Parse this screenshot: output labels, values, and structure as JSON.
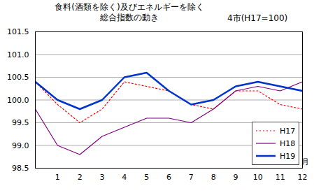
{
  "chart_data": {
    "type": "line",
    "title": "食料(酒類を除く)及びエネルギーを除く\n総合指数の動き",
    "subtitle": "4市(H17=100)",
    "x_label": "月",
    "x": [
      0,
      1,
      2,
      3,
      4,
      5,
      6,
      7,
      8,
      9,
      10,
      11,
      12
    ],
    "xlim": [
      0,
      12
    ],
    "xticks": [
      1,
      2,
      3,
      4,
      5,
      6,
      7,
      8,
      9,
      10,
      11,
      12
    ],
    "ylim": [
      98.5,
      101.5
    ],
    "yticks": [
      98.5,
      {
        "value": 99,
        "label": "99.0"
      },
      99.5,
      {
        "value": 100,
        "label": "100.0"
      },
      100.5,
      {
        "value": 101,
        "label": "101.0"
      },
      101.5
    ],
    "grid": true,
    "legend": "bottom-right",
    "series": [
      {
        "name": "H17",
        "color": "#ff0000",
        "line_style": "dotted",
        "values": [
          100.4,
          99.9,
          99.5,
          99.8,
          100.4,
          100.3,
          100.2,
          99.9,
          99.8,
          100.2,
          100.2,
          99.9,
          99.8
        ]
      },
      {
        "name": "H18",
        "color": "#800080",
        "line_style": "solid",
        "values": [
          99.8,
          99.0,
          98.8,
          99.2,
          99.4,
          99.6,
          99.6,
          99.5,
          99.8,
          100.2,
          100.3,
          100.2,
          100.4
        ]
      },
      {
        "name": "H19",
        "color": "#0033cc",
        "line_style": "solid",
        "values": [
          100.4,
          100.0,
          99.8,
          100.0,
          100.5,
          100.6,
          100.2,
          99.9,
          100.0,
          100.3,
          100.4,
          100.3,
          100.2
        ]
      }
    ]
  }
}
